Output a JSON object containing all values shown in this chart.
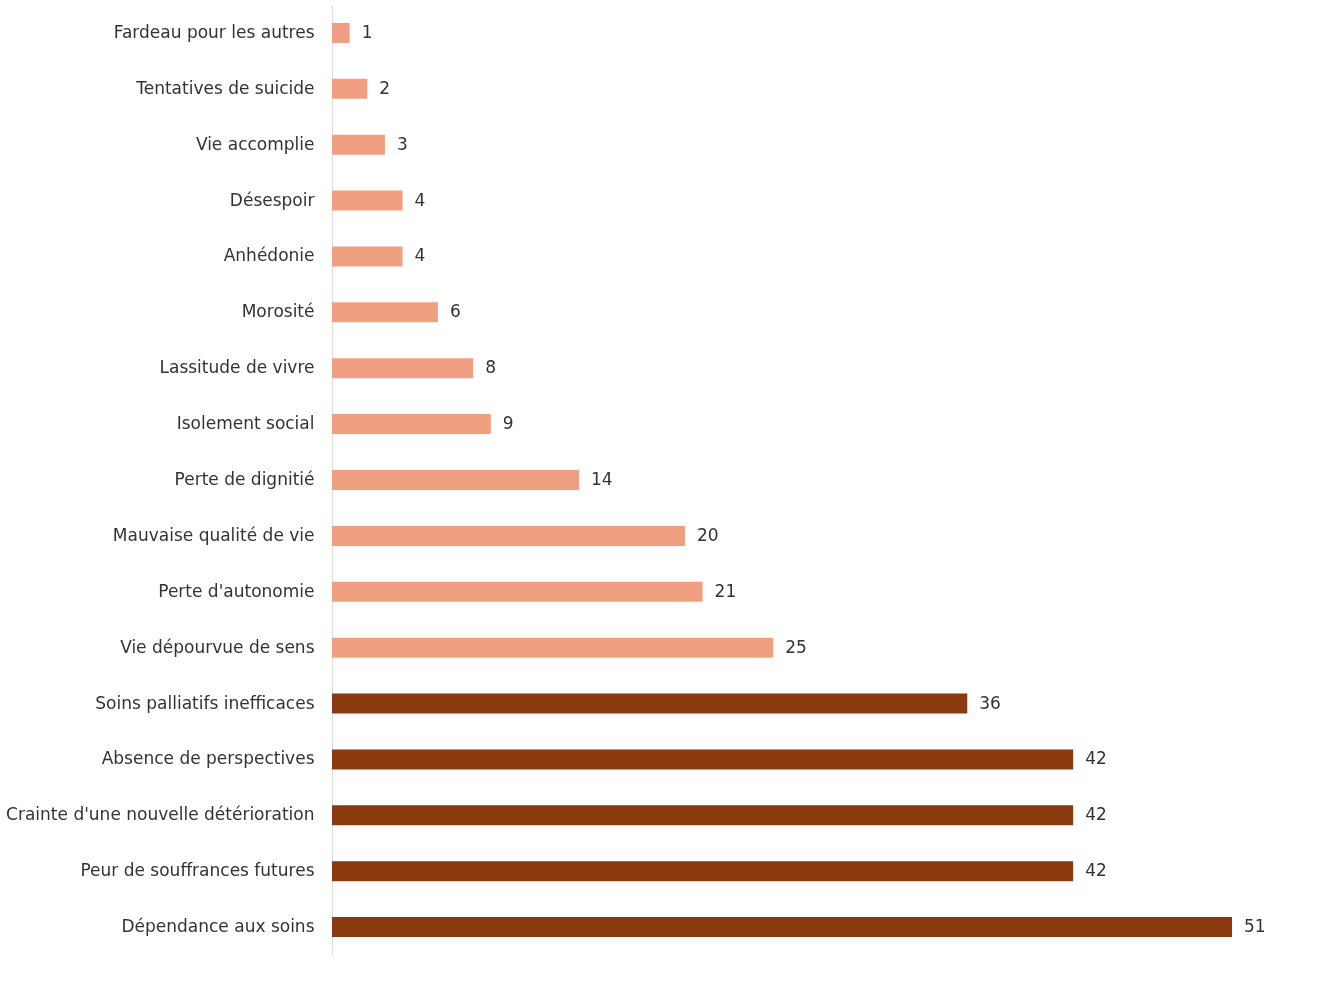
{
  "chart_data": {
    "type": "bar",
    "orientation": "horizontal",
    "data_labels": true,
    "categories": [
      "Fardeau pour les autres",
      "Tentatives de suicide",
      "Vie accomplie",
      "Désespoir",
      "Anhédonie",
      "Morosité",
      "Lassitude de vivre",
      "Isolement social",
      "Perte de dignitié",
      "Mauvaise qualité de vie",
      "Perte d'autonomie",
      "Vie dépourvue de sens",
      "Soins palliatifs inefficaces",
      "Absence de perspectives",
      "Crainte d'une nouvelle détérioration",
      "Peur de souffrances futures",
      "Dépendance aux soins"
    ],
    "values": [
      1,
      2,
      3,
      4,
      4,
      6,
      8,
      9,
      14,
      20,
      21,
      25,
      36,
      42,
      42,
      42,
      51
    ],
    "colors": [
      "#f0a080",
      "#f0a080",
      "#f0a080",
      "#f0a080",
      "#f0a080",
      "#f0a080",
      "#f0a080",
      "#f0a080",
      "#f0a080",
      "#f0a080",
      "#f0a080",
      "#f0a080",
      "#8b3a0f",
      "#8b3a0f",
      "#8b3a0f",
      "#8b3a0f",
      "#8b3a0f"
    ],
    "grid": false
  }
}
